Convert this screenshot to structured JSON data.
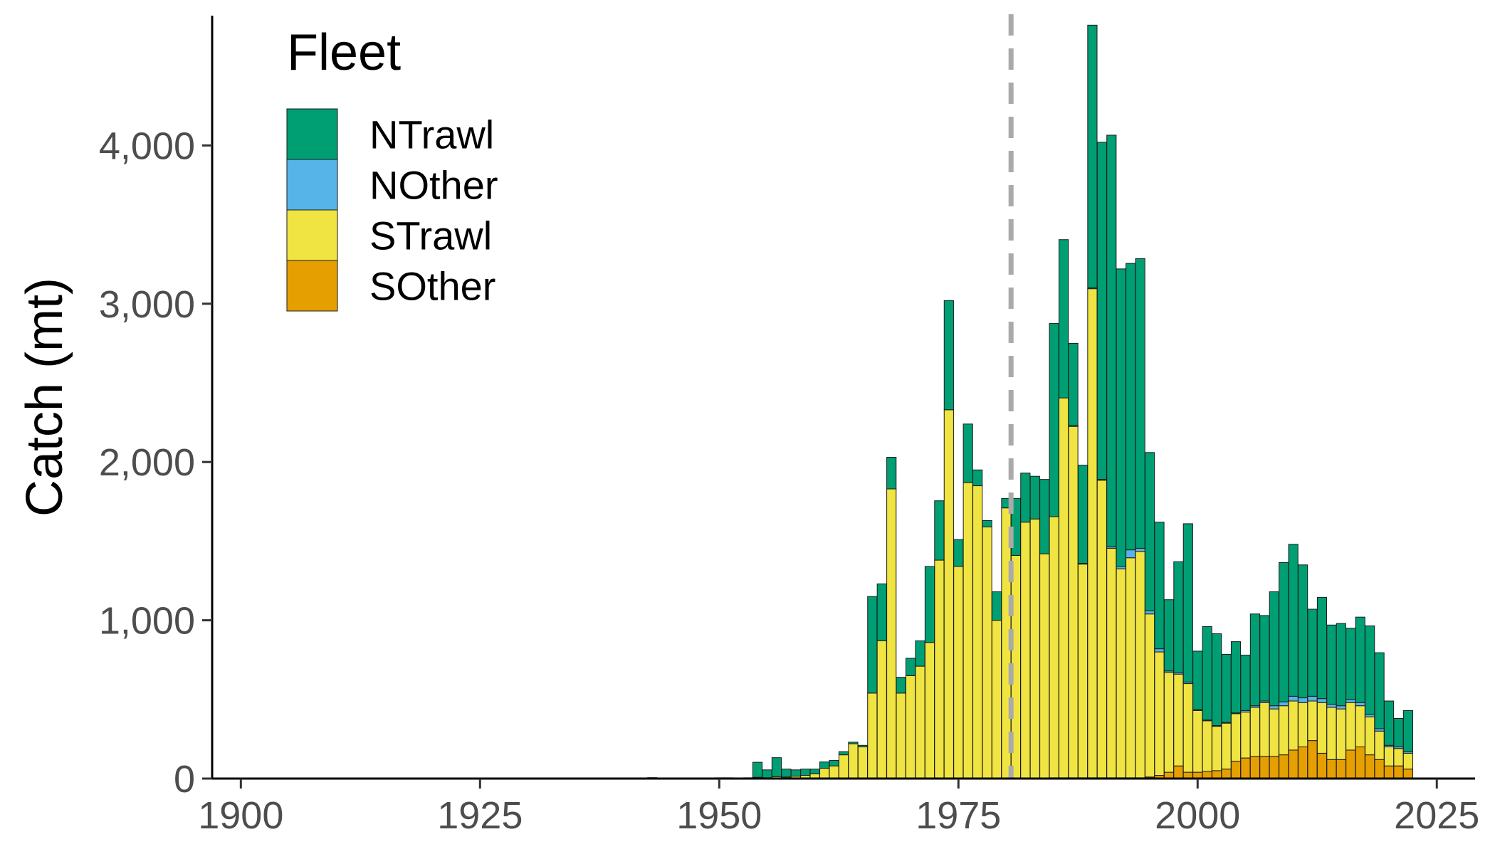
{
  "chart_data": {
    "type": "bar",
    "stacked": true,
    "ylabel": "Catch (mt)",
    "xlabel": "",
    "legend": {
      "title": "Fleet",
      "placement": "top-left"
    },
    "xlim": [
      1897,
      2029
    ],
    "ylim": [
      0,
      4820
    ],
    "x_ticks": [
      1900,
      1925,
      1950,
      1975,
      2000,
      2025
    ],
    "x_tick_labels": [
      "1900",
      "1925",
      "1950",
      "1975",
      "2000",
      "2025"
    ],
    "y_ticks": [
      0,
      1000,
      2000,
      3000,
      4000
    ],
    "y_tick_labels": [
      "0",
      "1,000",
      "2,000",
      "3,000",
      "4,000"
    ],
    "reference_line": {
      "x": 1980.5,
      "style": "dashed",
      "color": "#aaaaaa"
    },
    "grid": false,
    "series": [
      {
        "name": "SOther",
        "color": "#E69F00",
        "x": [
          1985,
          1986,
          1987,
          1988,
          1989,
          1990,
          1991,
          1992,
          1993,
          1994,
          1995,
          1996,
          1997,
          1998,
          1999,
          2000,
          2001,
          2002,
          2003,
          2004,
          2005,
          2006,
          2007,
          2008,
          2009,
          2010,
          2011,
          2012,
          2013,
          2014,
          2015,
          2016,
          2017,
          2018,
          2019,
          2020,
          2021,
          2022
        ],
        "values": [
          5,
          5,
          5,
          5,
          5,
          5,
          5,
          5,
          5,
          5,
          10,
          20,
          40,
          80,
          40,
          40,
          45,
          50,
          60,
          110,
          130,
          140,
          140,
          140,
          150,
          180,
          200,
          240,
          160,
          120,
          120,
          180,
          200,
          150,
          120,
          80,
          80,
          60
        ]
      },
      {
        "name": "STrawl",
        "color": "#F0E442",
        "x": [
          1935,
          1938,
          1943,
          1945,
          1948,
          1950,
          1951,
          1952,
          1953,
          1954,
          1955,
          1956,
          1957,
          1958,
          1959,
          1960,
          1961,
          1962,
          1963,
          1964,
          1965,
          1966,
          1967,
          1968,
          1969,
          1970,
          1971,
          1972,
          1973,
          1974,
          1975,
          1976,
          1977,
          1978,
          1979,
          1980,
          1981,
          1982,
          1983,
          1984,
          1985,
          1986,
          1987,
          1988,
          1989,
          1990,
          1991,
          1992,
          1993,
          1994,
          1995,
          1996,
          1997,
          1998,
          1999,
          2000,
          2001,
          2002,
          2003,
          2004,
          2005,
          2006,
          2007,
          2008,
          2009,
          2010,
          2011,
          2012,
          2013,
          2014,
          2015,
          2016,
          2017,
          2018,
          2019,
          2020,
          2021,
          2022
        ],
        "values": [
          3,
          3,
          6,
          3,
          3,
          5,
          5,
          3,
          5,
          8,
          5,
          12,
          10,
          15,
          20,
          30,
          65,
          80,
          150,
          220,
          200,
          540,
          870,
          1830,
          540,
          650,
          710,
          860,
          1380,
          2330,
          1340,
          1870,
          1850,
          1590,
          1000,
          1710,
          1410,
          1620,
          1640,
          1420,
          1650,
          2400,
          2220,
          1350,
          3090,
          1880,
          1450,
          1320,
          1390,
          1430,
          1030,
          780,
          630,
          580,
          560,
          390,
          320,
          280,
          290,
          300,
          290,
          310,
          340,
          300,
          310,
          310,
          280,
          250,
          320,
          330,
          320,
          300,
          260,
          240,
          180,
          120,
          110,
          100
        ]
      },
      {
        "name": "NOther",
        "color": "#56B4E9",
        "x": [
          1987,
          1988,
          1989,
          1990,
          1991,
          1992,
          1993,
          1994,
          1995,
          1996,
          1997,
          1998,
          1999,
          2000,
          2001,
          2002,
          2003,
          2004,
          2005,
          2006,
          2007,
          2008,
          2009,
          2010,
          2011,
          2012,
          2013,
          2014,
          2015,
          2016,
          2017,
          2018,
          2019,
          2020,
          2021,
          2022
        ],
        "values": [
          5,
          5,
          5,
          5,
          10,
          15,
          50,
          20,
          20,
          20,
          10,
          10,
          10,
          5,
          5,
          5,
          5,
          5,
          10,
          10,
          10,
          20,
          25,
          30,
          30,
          30,
          25,
          20,
          20,
          20,
          20,
          15,
          15,
          10,
          10,
          10
        ]
      },
      {
        "name": "NTrawl",
        "color": "#009E73",
        "x": [
          1954,
          1955,
          1956,
          1957,
          1958,
          1959,
          1960,
          1961,
          1962,
          1963,
          1964,
          1965,
          1966,
          1967,
          1968,
          1969,
          1970,
          1971,
          1972,
          1973,
          1974,
          1975,
          1976,
          1977,
          1978,
          1979,
          1980,
          1981,
          1982,
          1983,
          1984,
          1985,
          1986,
          1987,
          1988,
          1989,
          1990,
          1991,
          1992,
          1993,
          1994,
          1995,
          1996,
          1997,
          1998,
          1999,
          2000,
          2001,
          2002,
          2003,
          2004,
          2005,
          2006,
          2007,
          2008,
          2009,
          2010,
          2011,
          2012,
          2013,
          2014,
          2015,
          2016,
          2017,
          2018,
          2019,
          2020,
          2021,
          2022
        ],
        "values": [
          95,
          50,
          120,
          50,
          40,
          40,
          30,
          40,
          35,
          20,
          10,
          10,
          610,
          360,
          200,
          100,
          110,
          160,
          480,
          375,
          690,
          170,
          370,
          100,
          40,
          180,
          60,
          360,
          310,
          270,
          470,
          1220,
          1000,
          520,
          620,
          1660,
          2130,
          2600,
          1880,
          1810,
          1830,
          1000,
          800,
          450,
          700,
          1000,
          370,
          590,
          580,
          430,
          450,
          350,
          580,
          540,
          720,
          880,
          960,
          840,
          550,
          640,
          500,
          520,
          450,
          540,
          560,
          480,
          280,
          180,
          260
        ]
      }
    ]
  }
}
